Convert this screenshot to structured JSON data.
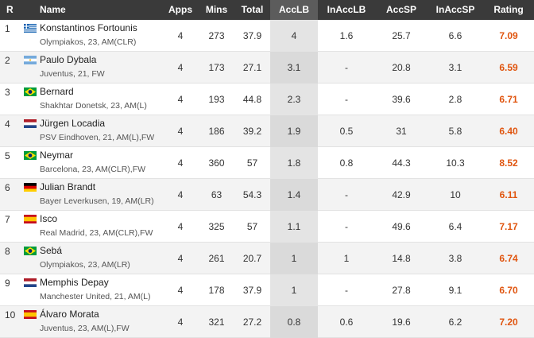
{
  "header": [
    "R",
    "Name",
    "Apps",
    "Mins",
    "Total",
    "AccLB",
    "InAccLB",
    "AccSP",
    "InAccSP",
    "Rating"
  ],
  "rows": [
    {
      "rank": "1",
      "name": "Konstantinos Fortounis",
      "info": "Olympiakos, 23, AM(CLR)",
      "cells": [
        "4",
        "273",
        "37.9",
        "4",
        "1.6",
        "25.7",
        "6.6",
        "7.09"
      ]
    },
    {
      "rank": "2",
      "name": "Paulo Dybala",
      "info": "Juventus, 21, FW",
      "cells": [
        "4",
        "173",
        "27.1",
        "3.1",
        "-",
        "20.8",
        "3.1",
        "6.59"
      ]
    },
    {
      "rank": "3",
      "name": "Bernard",
      "info": "Shakhtar Donetsk, 23, AM(L)",
      "cells": [
        "4",
        "193",
        "44.8",
        "2.3",
        "-",
        "39.6",
        "2.8",
        "6.71"
      ]
    },
    {
      "rank": "4",
      "name": "Jürgen Locadia",
      "info": "PSV Eindhoven, 21, AM(L),FW",
      "cells": [
        "4",
        "186",
        "39.2",
        "1.9",
        "0.5",
        "31",
        "5.8",
        "6.40"
      ]
    },
    {
      "rank": "5",
      "name": "Neymar",
      "info": "Barcelona, 23, AM(CLR),FW",
      "cells": [
        "4",
        "360",
        "57",
        "1.8",
        "0.8",
        "44.3",
        "10.3",
        "8.52"
      ]
    },
    {
      "rank": "6",
      "name": "Julian Brandt",
      "info": "Bayer Leverkusen, 19, AM(LR)",
      "cells": [
        "4",
        "63",
        "54.3",
        "1.4",
        "-",
        "42.9",
        "10",
        "6.11"
      ]
    },
    {
      "rank": "7",
      "name": "Isco",
      "info": "Real Madrid, 23, AM(CLR),FW",
      "cells": [
        "4",
        "325",
        "57",
        "1.1",
        "-",
        "49.6",
        "6.4",
        "7.17"
      ]
    },
    {
      "rank": "8",
      "name": "Sebá",
      "info": "Olympiakos, 23, AM(LR)",
      "cells": [
        "4",
        "261",
        "20.7",
        "1",
        "1",
        "14.8",
        "3.8",
        "6.74"
      ]
    },
    {
      "rank": "9",
      "name": "Memphis Depay",
      "info": "Manchester United, 21, AM(L)",
      "cells": [
        "4",
        "178",
        "37.9",
        "1",
        "-",
        "27.8",
        "9.1",
        "6.70"
      ]
    },
    {
      "rank": "10",
      "name": "Álvaro Morata",
      "info": "Juventus, 23, AM(L),FW",
      "cells": [
        "4",
        "321",
        "27.2",
        "0.8",
        "0.6",
        "19.6",
        "6.2",
        "7.20"
      ]
    }
  ]
}
